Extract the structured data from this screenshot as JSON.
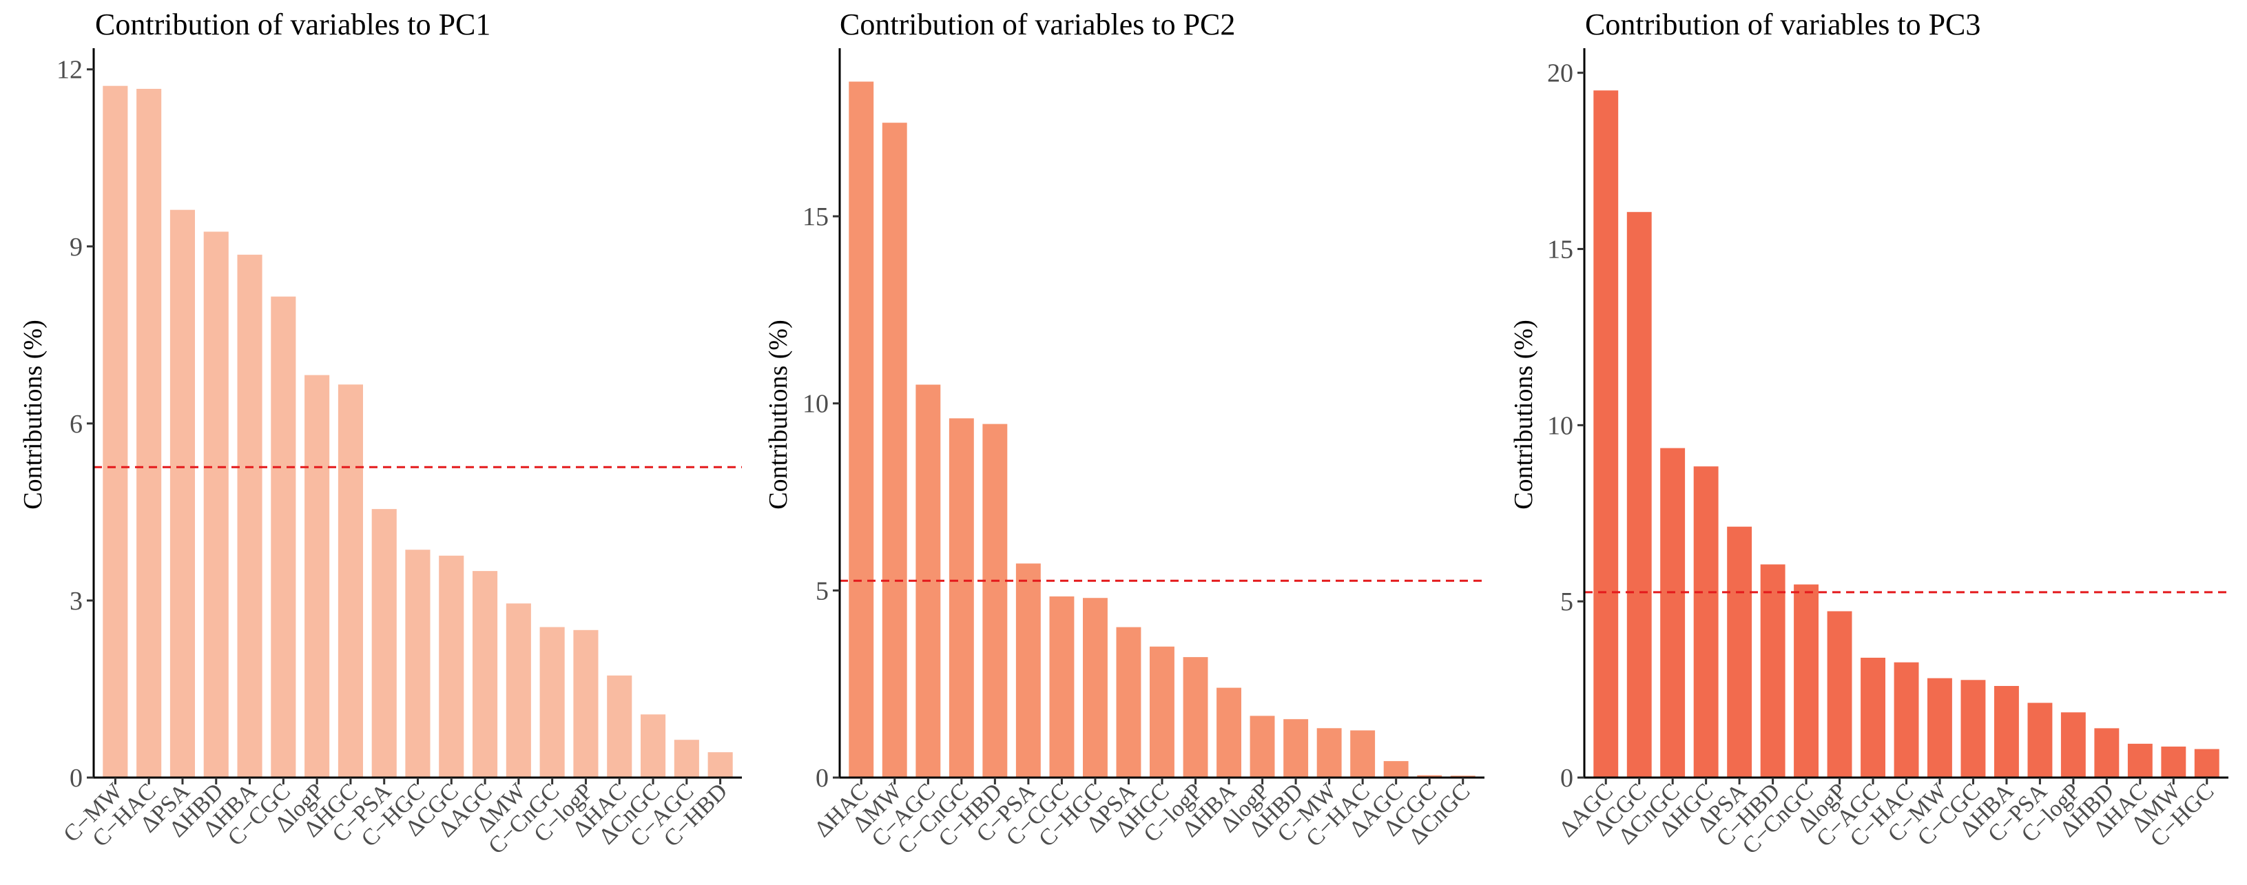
{
  "chart_data": [
    {
      "type": "bar",
      "title": "Contribution of variables to PC1",
      "ylabel": "Contributions (%)",
      "xlabel": "",
      "color": "#F9BBA1",
      "ylim": [
        0,
        12.3
      ],
      "yticks": [
        0,
        3,
        6,
        9,
        12
      ],
      "reference_line": 5.26,
      "grid": false,
      "categories": [
        "C−MW",
        "C−HAC",
        "ΔPSA",
        "ΔHBD",
        "ΔHBA",
        "C−CGC",
        "ΔlogP",
        "ΔHGC",
        "C−PSA",
        "C−HGC",
        "ΔCGC",
        "ΔAGC",
        "ΔMW",
        "C−CnGC",
        "C−logP",
        "ΔHAC",
        "ΔCnGC",
        "C−AGC",
        "C−HBD"
      ],
      "values": [
        11.72,
        11.67,
        9.62,
        9.25,
        8.86,
        8.15,
        6.82,
        6.66,
        4.55,
        3.86,
        3.76,
        3.5,
        2.95,
        2.55,
        2.5,
        1.73,
        1.07,
        0.64,
        0.43
      ]
    },
    {
      "type": "bar",
      "title": "Contribution of variables to PC2",
      "ylabel": "Contributions (%)",
      "xlabel": "",
      "color": "#F6936F",
      "ylim": [
        0,
        19.4
      ],
      "yticks": [
        0,
        5,
        10,
        15
      ],
      "reference_line": 5.26,
      "grid": false,
      "categories": [
        "ΔHAC",
        "ΔMW",
        "C−AGC",
        "C−CnGC",
        "C−HBD",
        "C−PSA",
        "C−CGC",
        "C−HGC",
        "ΔPSA",
        "ΔHGC",
        "C−logP",
        "ΔHBA",
        "ΔlogP",
        "ΔHBD",
        "C−MW",
        "C−HAC",
        "ΔAGC",
        "ΔCGC",
        "ΔCnGC"
      ],
      "values": [
        18.6,
        17.5,
        10.5,
        9.6,
        9.45,
        5.72,
        4.84,
        4.8,
        4.02,
        3.5,
        3.22,
        2.4,
        1.65,
        1.56,
        1.32,
        1.26,
        0.44,
        0.06,
        0.05
      ]
    },
    {
      "type": "bar",
      "title": "Contribution of variables to PC3",
      "ylabel": "Contributions (%)",
      "xlabel": "",
      "color": "#F26B4E",
      "ylim": [
        0,
        20.6
      ],
      "yticks": [
        0,
        5,
        10,
        15,
        20
      ],
      "reference_line": 5.26,
      "grid": false,
      "categories": [
        "ΔAGC",
        "ΔCGC",
        "ΔCnGC",
        "ΔHGC",
        "ΔPSA",
        "C−HBD",
        "C−CnGC",
        "ΔlogP",
        "C−AGC",
        "C−HAC",
        "C−MW",
        "C−CGC",
        "ΔHBA",
        "C−PSA",
        "C−logP",
        "ΔHBD",
        "ΔHAC",
        "ΔMW",
        "C−HGC"
      ],
      "values": [
        19.5,
        16.05,
        9.35,
        8.83,
        7.12,
        6.05,
        5.48,
        4.72,
        3.4,
        3.27,
        2.82,
        2.77,
        2.6,
        2.12,
        1.85,
        1.4,
        0.96,
        0.88,
        0.81
      ]
    }
  ]
}
